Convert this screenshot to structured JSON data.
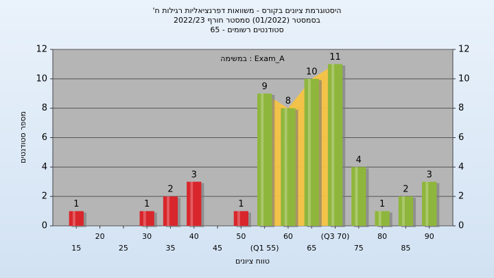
{
  "chart_data": {
    "type": "bar",
    "title": [
      "היסטוגרמת ציונים בקורס - משוואות דפרנציאליות רגילות ח'",
      "בסמסטר  (01/2022)  סמסטר חורף  2022/23",
      "סטודנטים רשומים - 65"
    ],
    "annotation": "במשימה : Exam_A",
    "y_label": "מספר סטודנטים",
    "x_label": "טווח ציונים",
    "x": [
      15,
      20,
      25,
      30,
      35,
      40,
      45,
      50,
      55,
      60,
      65,
      70,
      75,
      80,
      85,
      90
    ],
    "values": [
      1,
      0,
      0,
      1,
      2,
      3,
      0,
      1,
      9,
      8,
      10,
      11,
      4,
      1,
      2,
      3
    ],
    "colors": [
      "#d8262c",
      "#d8262c",
      "#d8262c",
      "#d8262c",
      "#d8262c",
      "#d8262c",
      "#d8262c",
      "#d8262c",
      "#8fb63c",
      "#8fb63c",
      "#8fb63c",
      "#8fb63c",
      "#8fb63c",
      "#8fb63c",
      "#8fb63c",
      "#8fb63c"
    ],
    "xlim": [
      10,
      95
    ],
    "xticks": [
      15,
      20,
      25,
      30,
      35,
      40,
      45,
      50,
      {
        "value": 55,
        "label": "(Q1 55)"
      },
      60,
      65,
      {
        "value": 70,
        "label": "(Q3 70)"
      },
      75,
      80,
      85,
      90
    ],
    "ylim": [
      0,
      12
    ],
    "yticks": [
      0,
      2,
      4,
      6,
      8,
      10,
      12
    ],
    "grid": true
  }
}
